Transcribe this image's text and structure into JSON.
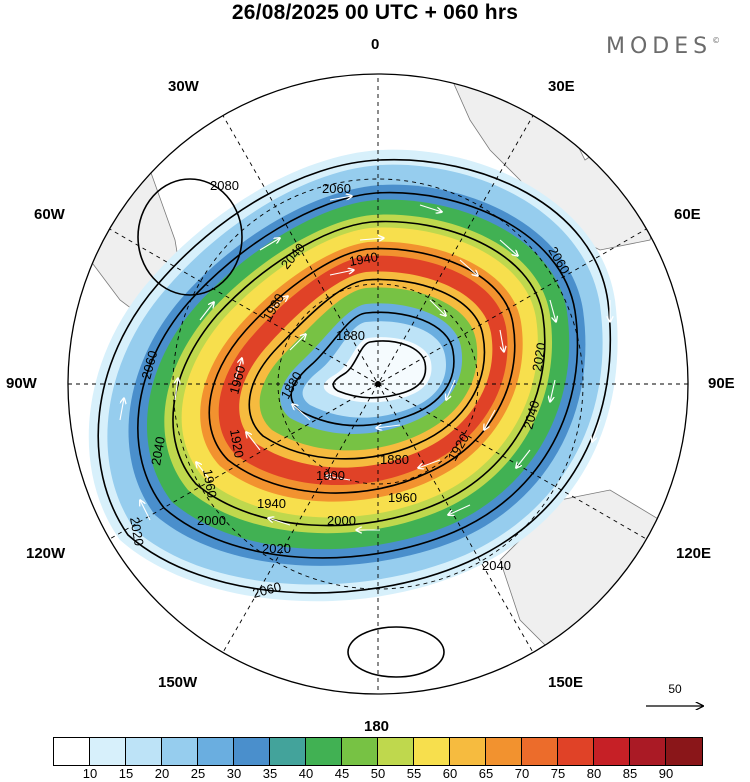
{
  "header": {
    "title": "26/08/2025  00 UTC  + 060 hrs",
    "logo": "MODES",
    "logo_mark": "©"
  },
  "map": {
    "projection": "south-polar-stereographic",
    "longitude_labels": {
      "top": "0",
      "top_right": "30E",
      "right_upper": "60E",
      "right": "90E",
      "right_lower": "120E",
      "bottom_right": "150E",
      "bottom": "180",
      "bottom_left": "150W",
      "left_lower": "120W",
      "left": "90W",
      "left_upper": "60W",
      "top_left": "30W"
    },
    "contour_labels": [
      "2080",
      "2060",
      "2060",
      "2060",
      "2060",
      "2040",
      "2040",
      "2040",
      "2040",
      "2020",
      "2020",
      "2020",
      "2000",
      "2000",
      "1980",
      "1960",
      "1960",
      "1960",
      "1940",
      "1940",
      "1920",
      "1920",
      "1900",
      "1880",
      "1880",
      "1880"
    ],
    "wind_reference": {
      "value": "50"
    }
  },
  "colorbar": {
    "colors": [
      "#ffffff",
      "#d7f0fb",
      "#bde3f7",
      "#96cdee",
      "#6aaee0",
      "#4a8fcc",
      "#43a39b",
      "#41b153",
      "#77c244",
      "#bfd84d",
      "#f7df4d",
      "#f6bb3f",
      "#f2922f",
      "#ec6c2b",
      "#e04227",
      "#c62026",
      "#aa1a25",
      "#8a1619"
    ],
    "ticks": [
      "10",
      "15",
      "20",
      "25",
      "30",
      "35",
      "40",
      "45",
      "50",
      "55",
      "60",
      "65",
      "70",
      "75",
      "80",
      "85",
      "90"
    ]
  }
}
